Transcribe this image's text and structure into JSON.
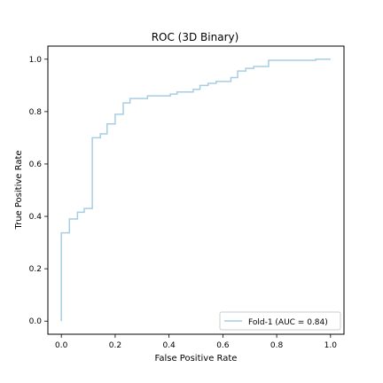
{
  "chart_data": {
    "type": "line",
    "title": "ROC (3D Binary)",
    "xlabel": "False Positive Rate",
    "ylabel": "True Positive Rate",
    "xlim": [
      -0.05,
      1.05
    ],
    "ylim": [
      -0.05,
      1.05
    ],
    "xticks": [
      0.0,
      0.2,
      0.4,
      0.6,
      0.8,
      1.0
    ],
    "yticks": [
      0.0,
      0.2,
      0.4,
      0.6,
      0.8,
      1.0
    ],
    "xtick_labels": [
      "0.0",
      "0.2",
      "0.4",
      "0.6",
      "0.8",
      "1.0"
    ],
    "ytick_labels": [
      "0.0",
      "0.2",
      "0.4",
      "0.6",
      "0.8",
      "1.0"
    ],
    "grid": false,
    "legend_position": "lower-right",
    "series": [
      {
        "name": "Fold-1 (AUC = 0.84)",
        "color": "#a6cee3",
        "drawstyle": "steps",
        "points": [
          [
            0.0,
            0.0
          ],
          [
            0.0,
            0.337
          ],
          [
            0.03,
            0.337
          ],
          [
            0.03,
            0.39
          ],
          [
            0.06,
            0.39
          ],
          [
            0.06,
            0.416
          ],
          [
            0.085,
            0.416
          ],
          [
            0.085,
            0.43
          ],
          [
            0.115,
            0.43
          ],
          [
            0.115,
            0.7
          ],
          [
            0.145,
            0.7
          ],
          [
            0.145,
            0.715
          ],
          [
            0.17,
            0.715
          ],
          [
            0.17,
            0.753
          ],
          [
            0.2,
            0.753
          ],
          [
            0.2,
            0.79
          ],
          [
            0.23,
            0.79
          ],
          [
            0.23,
            0.833
          ],
          [
            0.255,
            0.833
          ],
          [
            0.255,
            0.85
          ],
          [
            0.32,
            0.85
          ],
          [
            0.32,
            0.86
          ],
          [
            0.405,
            0.86
          ],
          [
            0.405,
            0.867
          ],
          [
            0.43,
            0.867
          ],
          [
            0.43,
            0.875
          ],
          [
            0.49,
            0.875
          ],
          [
            0.49,
            0.885
          ],
          [
            0.515,
            0.885
          ],
          [
            0.515,
            0.9
          ],
          [
            0.545,
            0.9
          ],
          [
            0.545,
            0.908
          ],
          [
            0.575,
            0.908
          ],
          [
            0.575,
            0.915
          ],
          [
            0.63,
            0.915
          ],
          [
            0.63,
            0.93
          ],
          [
            0.655,
            0.93
          ],
          [
            0.655,
            0.955
          ],
          [
            0.685,
            0.955
          ],
          [
            0.685,
            0.965
          ],
          [
            0.715,
            0.965
          ],
          [
            0.715,
            0.972
          ],
          [
            0.77,
            0.972
          ],
          [
            0.77,
            0.996
          ],
          [
            0.945,
            0.996
          ],
          [
            0.945,
            1.0
          ],
          [
            1.0,
            1.0
          ]
        ]
      }
    ]
  }
}
